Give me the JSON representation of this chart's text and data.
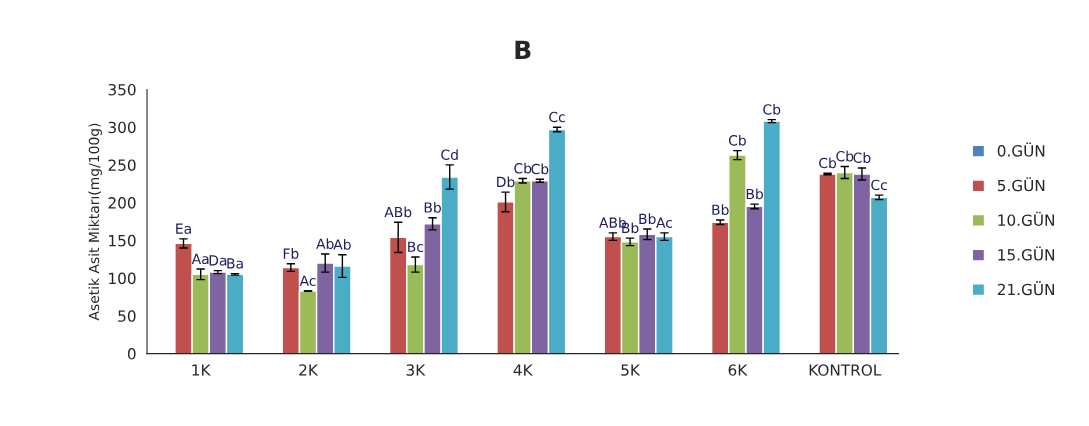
{
  "chart_data": {
    "type": "bar",
    "title": "B",
    "ylabel": "Asetik Asit Miktarı(mg/100g)",
    "categories": [
      "1K",
      "2K",
      "3K",
      "4K",
      "5K",
      "6K",
      "KONTROL"
    ],
    "ylim": [
      0,
      350
    ],
    "yticks": [
      0,
      50,
      100,
      150,
      200,
      250,
      300,
      350
    ],
    "grid": false,
    "legend": "right",
    "series": [
      {
        "name": "0.GÜN",
        "color": "#4f81bd",
        "values": [
          null,
          null,
          null,
          null,
          null,
          null,
          null
        ]
      },
      {
        "name": "5.GÜN",
        "color": "#c0504d",
        "values": [
          146,
          114,
          154,
          201,
          155,
          174,
          238
        ],
        "errors": [
          6,
          5,
          20,
          13,
          5,
          3,
          1
        ],
        "value_labels": [
          "Ea",
          "Fb",
          "ABb",
          "Db",
          "ABb",
          "Bb",
          "Cb"
        ]
      },
      {
        "name": "10.GÜN",
        "color": "#9bbb59",
        "values": [
          105,
          83,
          118,
          229,
          148,
          263,
          240
        ],
        "errors": [
          7,
          null,
          10,
          3,
          5,
          6,
          8
        ],
        "value_labels": [
          "Aa",
          "Ac",
          "Bc",
          "Cb",
          "Bb",
          "Cb",
          "Cb"
        ]
      },
      {
        "name": "15.GÜN",
        "color": "#8064a2",
        "values": [
          108,
          120,
          172,
          229,
          158,
          195,
          238
        ],
        "errors": [
          2,
          12,
          8,
          2,
          7,
          3,
          8
        ],
        "value_labels": [
          "Da",
          "Ab",
          "Bb",
          "Cb",
          "Bb",
          "Bb",
          "Cb"
        ]
      },
      {
        "name": "21.GÜN",
        "color": "#4bacc6",
        "values": [
          105,
          116,
          234,
          297,
          155,
          308,
          207
        ],
        "errors": [
          1,
          15,
          16,
          3,
          5,
          2,
          3
        ],
        "value_labels": [
          "Ba",
          "Ab",
          "Cd",
          "Cc",
          "Ac",
          "Cb",
          "Cc"
        ]
      }
    ]
  }
}
